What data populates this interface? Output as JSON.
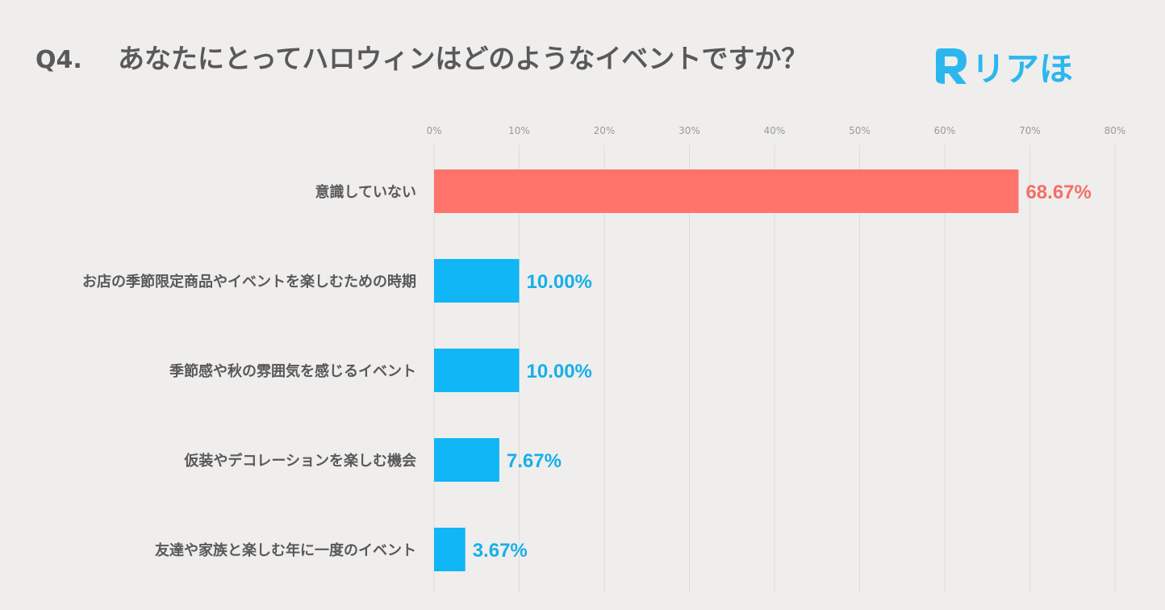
{
  "title": {
    "number": "Q4.",
    "text": "あなたにとってハロウィンはどのようなイベントですか？"
  },
  "logo": {
    "icon": "r-logo-icon",
    "text": "リアほ",
    "color": "#2bb7ee"
  },
  "colors": {
    "highlight": "#ff736b",
    "normal": "#10b6f5",
    "highlight_text": "#f36f67",
    "normal_text": "#17afe9"
  },
  "chart_data": {
    "type": "bar",
    "orientation": "horizontal",
    "title": "あなたにとってハロウィンはどのようなイベントですか？",
    "categories": [
      "意識していない",
      "お店の季節限定商品やイベントを楽しむための時期",
      "季節感や秋の雰囲気を感じるイベント",
      "仮装やデコレーションを楽しむ機会",
      "友達や家族と楽しむ年に一度のイベント"
    ],
    "values": [
      68.67,
      10.0,
      10.0,
      7.67,
      3.67
    ],
    "value_labels": [
      "68.67%",
      "10.00%",
      "10.00%",
      "7.67%",
      "3.67%"
    ],
    "highlight_index": 0,
    "xlim": [
      0,
      80
    ],
    "ticks": [
      0,
      10,
      20,
      30,
      40,
      50,
      60,
      70,
      80
    ],
    "tick_labels": [
      "0%",
      "10%",
      "20%",
      "30%",
      "40%",
      "50%",
      "60%",
      "70%",
      "80%"
    ],
    "grid": true,
    "legend": "none"
  }
}
